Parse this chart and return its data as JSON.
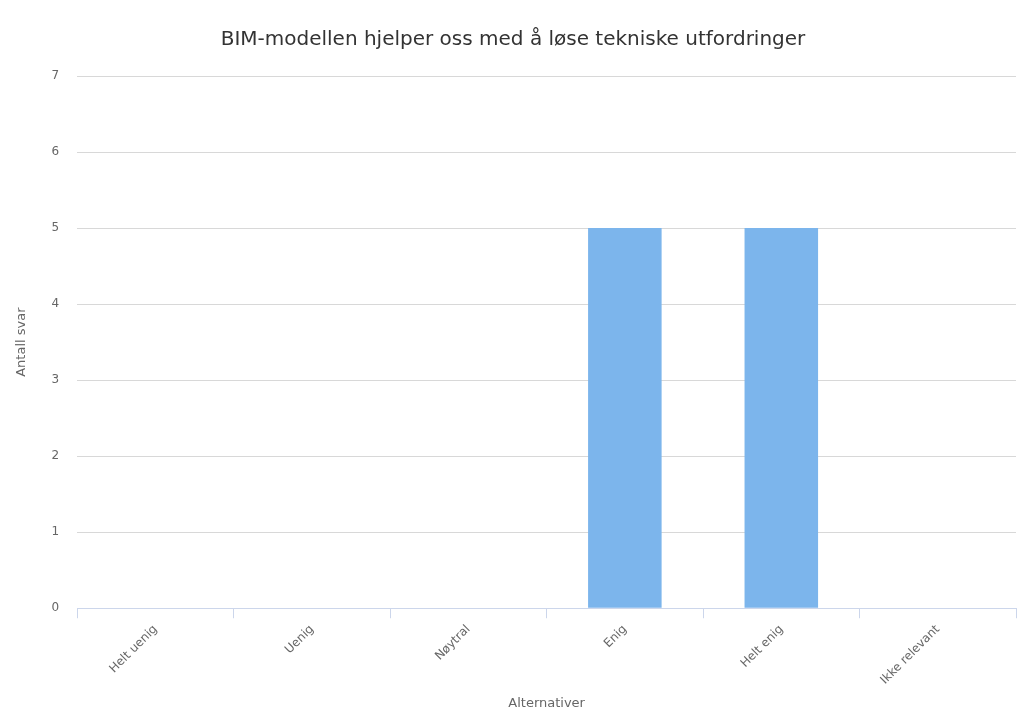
{
  "chart_data": {
    "type": "bar",
    "title": "BIM-modellen hjelper oss med å løse tekniske utfordringer",
    "xlabel": "Alternativer",
    "ylabel": "Antall svar",
    "categories": [
      "Helt uenig",
      "Uenig",
      "Nøytral",
      "Enig",
      "Helt enig",
      "Ikke relevant"
    ],
    "values": [
      0,
      0,
      0,
      5,
      5,
      0
    ],
    "color": "#7cb5ec",
    "ylim": [
      0,
      7
    ],
    "yticks": [
      0,
      1,
      2,
      3,
      4,
      5,
      6,
      7
    ],
    "grid": "y",
    "legend": false
  }
}
